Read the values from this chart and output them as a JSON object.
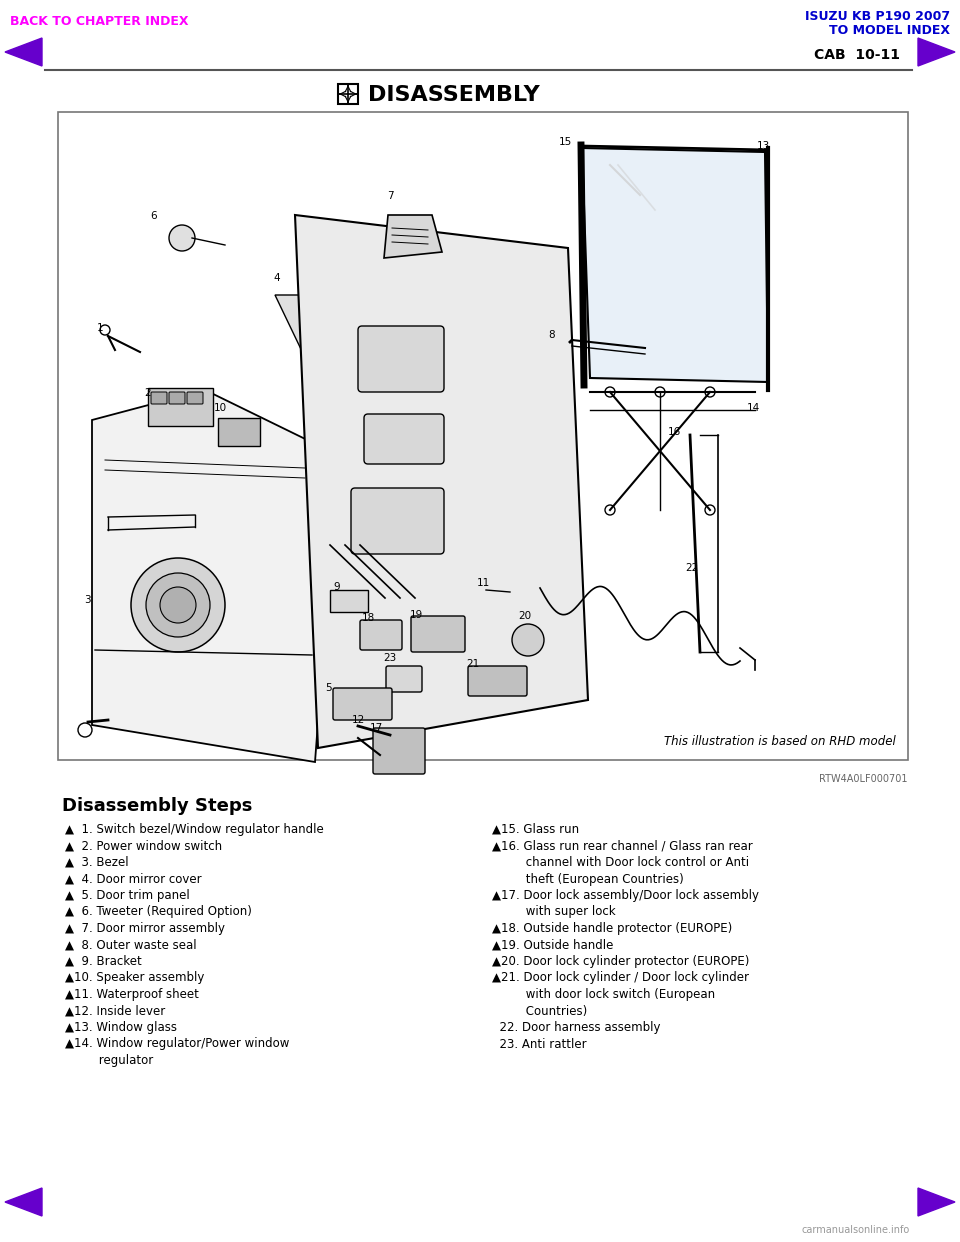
{
  "page_title_left": "BACK TO CHAPTER INDEX",
  "page_title_right_line1": "ISUZU KB P190 2007",
  "page_title_right_line2": "TO MODEL INDEX",
  "page_ref": "CAB  10-11",
  "section_title": "DISASSEMBLY",
  "rhd_note": "This illustration is based on RHD model",
  "ref_code": "RTW4A0LF000701",
  "disassembly_title": "Disassembly Steps",
  "left_steps": [
    "▲  1. Switch bezel/Window regulator handle",
    "▲  2. Power window switch",
    "▲  3. Bezel",
    "▲  4. Door mirror cover",
    "▲  5. Door trim panel",
    "▲  6. Tweeter (Required Option)",
    "▲  7. Door mirror assembly",
    "▲  8. Outer waste seal",
    "▲  9. Bracket",
    "▲10. Speaker assembly",
    "▲11. Waterproof sheet",
    "▲12. Inside lever",
    "▲13. Window glass",
    "▲14. Window regulator/Power window",
    "         regulator"
  ],
  "right_steps": [
    "▲15. Glass run",
    "▲16. Glass run rear channel / Glass ran rear",
    "         channel with Door lock control or Anti",
    "         theft (European Countries)",
    "▲17. Door lock assembly/Door lock assembly",
    "         with super lock",
    "▲18. Outside handle protector (EUROPE)",
    "▲19. Outside handle",
    "▲20. Door lock cylinder protector (EUROPE)",
    "▲21. Door lock cylinder / Door lock cylinder",
    "         with door lock switch (European",
    "         Countries)",
    "  22. Door harness assembly",
    "  23. Anti rattler"
  ],
  "bg_color": "#ffffff",
  "text_color": "#000000",
  "header_left_color": "#ff00ff",
  "header_right_color": "#0000cd",
  "nav_arrow_color": "#6600cc",
  "separator_color": "#555555",
  "box_border_color": "#888888",
  "step_font_size": 8.5,
  "disassembly_title_fontsize": 13
}
